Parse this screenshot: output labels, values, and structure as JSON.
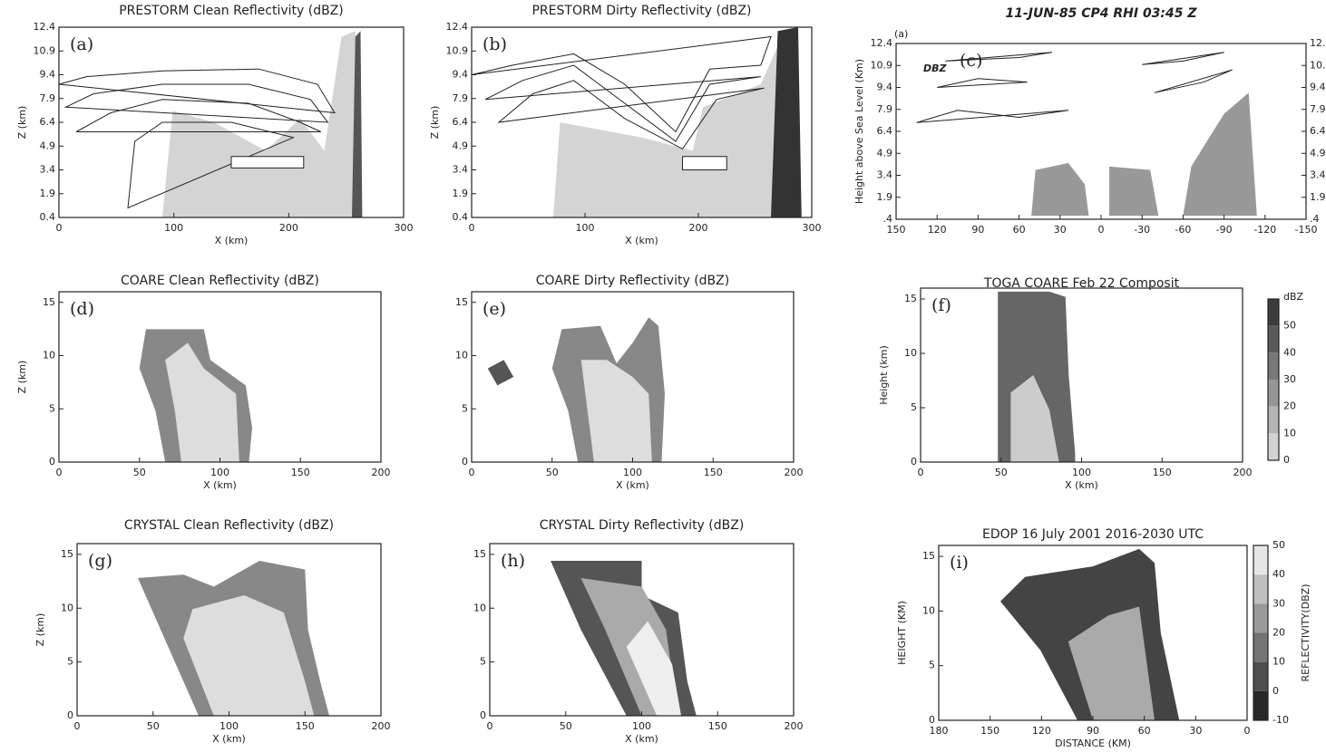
{
  "panels": [
    {
      "title": "PRESTORM Clean Reflectivity (dBZ)",
      "label": "(a)",
      "xlabel": "X (km)",
      "ylabel": "Z (km)",
      "xlim": [
        0,
        300
      ],
      "ylim": [
        0.4,
        12.4
      ],
      "xticks": [
        0,
        100,
        200,
        300
      ],
      "yticks": [
        0.4,
        1.9,
        3.4,
        4.9,
        6.4,
        7.9,
        9.4,
        10.9,
        12.4
      ]
    },
    {
      "title": "PRESTORM Dirty Reflectivity (dBZ)",
      "label": "(b)",
      "xlabel": "X (km)",
      "ylabel": "Z (km)",
      "xlim": [
        0,
        300
      ],
      "ylim": [
        0.4,
        12.4
      ],
      "xticks": [
        0,
        100,
        200,
        300
      ],
      "yticks": [
        0.4,
        1.9,
        3.4,
        4.9,
        6.4,
        7.9,
        9.4,
        10.9,
        12.4
      ]
    },
    {
      "title": "11-JUN-85 CP4 RHI 03:45 Z",
      "label": "(c)",
      "corner_label": "(a)",
      "annotation": "DBZ",
      "ylabel": "Height above Sea Level (Km)",
      "xlim": [
        150,
        -150
      ],
      "ylim": [
        0.4,
        12.4
      ],
      "xticks": [
        150,
        120,
        90,
        60,
        30,
        0,
        -30,
        -60,
        -90,
        -120,
        -150
      ],
      "yticks": [
        {
          "value": 0.4,
          "label": ".4"
        },
        1.9,
        3.4,
        4.9,
        6.4,
        7.9,
        9.4,
        10.9,
        12.4
      ]
    },
    {
      "title": "COARE Clean Reflectivity (dBZ)",
      "label": "(d)",
      "xlabel": "X (km)",
      "ylabel": "Z (km)",
      "xlim": [
        0,
        200
      ],
      "ylim": [
        0,
        16
      ],
      "xticks": [
        0,
        50,
        100,
        150,
        200
      ],
      "yticks": [
        0,
        5,
        10,
        15
      ]
    },
    {
      "title": "COARE Dirty Reflectivity (dBZ)",
      "label": "(e)",
      "xlabel": "X (km)",
      "xlim": [
        0,
        200
      ],
      "ylim": [
        0,
        16
      ],
      "xticks": [
        0,
        50,
        100,
        150,
        200
      ],
      "yticks": [
        0,
        5,
        10,
        15
      ]
    },
    {
      "title": "TOGA COARE Feb 22 Composit",
      "label": "(f)",
      "xlabel": "X (km)",
      "ylabel": "Height (km)",
      "xlim": [
        0,
        200
      ],
      "ylim": [
        0,
        16
      ],
      "xticks": [
        0,
        50,
        100,
        150,
        200
      ],
      "yticks": [
        0,
        5,
        10,
        15
      ],
      "colorbar": {
        "title": "dBZ",
        "lim": [
          0,
          60
        ],
        "ticks": [
          50,
          40,
          30,
          20,
          10,
          0
        ]
      }
    },
    {
      "title": "CRYSTAL Clean Reflectivity (dBZ)",
      "label": "(g)",
      "xlabel": "X (km)",
      "ylabel": "Z (km)",
      "xlim": [
        0,
        200
      ],
      "ylim": [
        0,
        16
      ],
      "xticks": [
        0,
        50,
        100,
        150,
        200
      ],
      "yticks": [
        0,
        5,
        10,
        15
      ]
    },
    {
      "title": "CRYSTAL Dirty Reflectivity (dBZ)",
      "label": "(h)",
      "xlabel": "X (km)",
      "xlim": [
        0,
        200
      ],
      "ylim": [
        0,
        16
      ],
      "xticks": [
        0,
        50,
        100,
        150,
        200
      ],
      "yticks": [
        0,
        5,
        10,
        15
      ]
    },
    {
      "title": "EDOP   16 July 2001   2016-2030 UTC",
      "label": "(i)",
      "xlabel": "DISTANCE (KM)",
      "ylabel": "HEIGHT (KM)",
      "xlim": [
        180,
        0
      ],
      "ylim": [
        0,
        16
      ],
      "xticks": [
        180,
        150,
        120,
        90,
        60,
        30,
        0
      ],
      "yticks": [
        0,
        5,
        10,
        15
      ],
      "colorbar": {
        "title": "REFLECTIVITY(DBZ)",
        "lim": [
          -10,
          50
        ],
        "ticks": [
          50,
          40,
          30,
          20,
          10,
          0,
          -10
        ]
      }
    }
  ]
}
